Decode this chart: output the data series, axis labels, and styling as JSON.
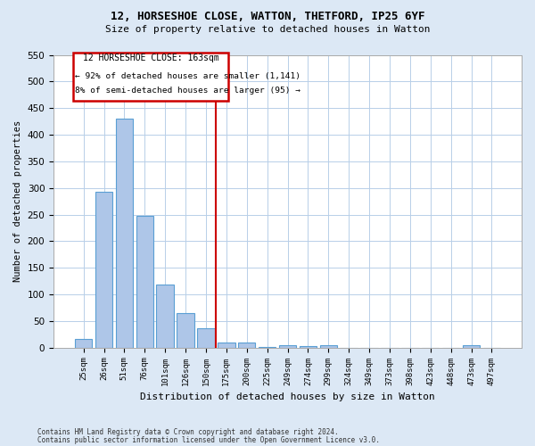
{
  "title1": "12, HORSESHOE CLOSE, WATTON, THETFORD, IP25 6YF",
  "title2": "Size of property relative to detached houses in Watton",
  "xlabel": "Distribution of detached houses by size in Watton",
  "ylabel": "Number of detached properties",
  "categories": [
    "25sqm",
    "26sqm",
    "51sqm",
    "76sqm",
    "101sqm",
    "126sqm",
    "150sqm",
    "175sqm",
    "200sqm",
    "225sqm",
    "249sqm",
    "274sqm",
    "299sqm",
    "324sqm",
    "349sqm",
    "373sqm",
    "398sqm",
    "423sqm",
    "448sqm",
    "473sqm",
    "497sqm"
  ],
  "values": [
    17,
    293,
    430,
    247,
    118,
    65,
    36,
    9,
    10,
    2,
    5,
    3,
    4,
    0,
    0,
    0,
    0,
    0,
    0,
    4,
    0
  ],
  "bar_color": "#aec6e8",
  "bar_edge_color": "#5a9fd4",
  "vline_idx": 6.5,
  "vline_color": "#cc0000",
  "annotation_title": "12 HORSESHOE CLOSE: 163sqm",
  "annotation_line1": "← 92% of detached houses are smaller (1,141)",
  "annotation_line2": "8% of semi-detached houses are larger (95) →",
  "annotation_box_color": "#cc0000",
  "annotation_bg": "#ffffff",
  "ylim": [
    0,
    550
  ],
  "yticks": [
    0,
    50,
    100,
    150,
    200,
    250,
    300,
    350,
    400,
    450,
    500,
    550
  ],
  "footnote1": "Contains HM Land Registry data © Crown copyright and database right 2024.",
  "footnote2": "Contains public sector information licensed under the Open Government Licence v3.0.",
  "bg_color": "#dce8f5",
  "plot_bg_color": "#ffffff",
  "grid_color": "#b8cfe8"
}
